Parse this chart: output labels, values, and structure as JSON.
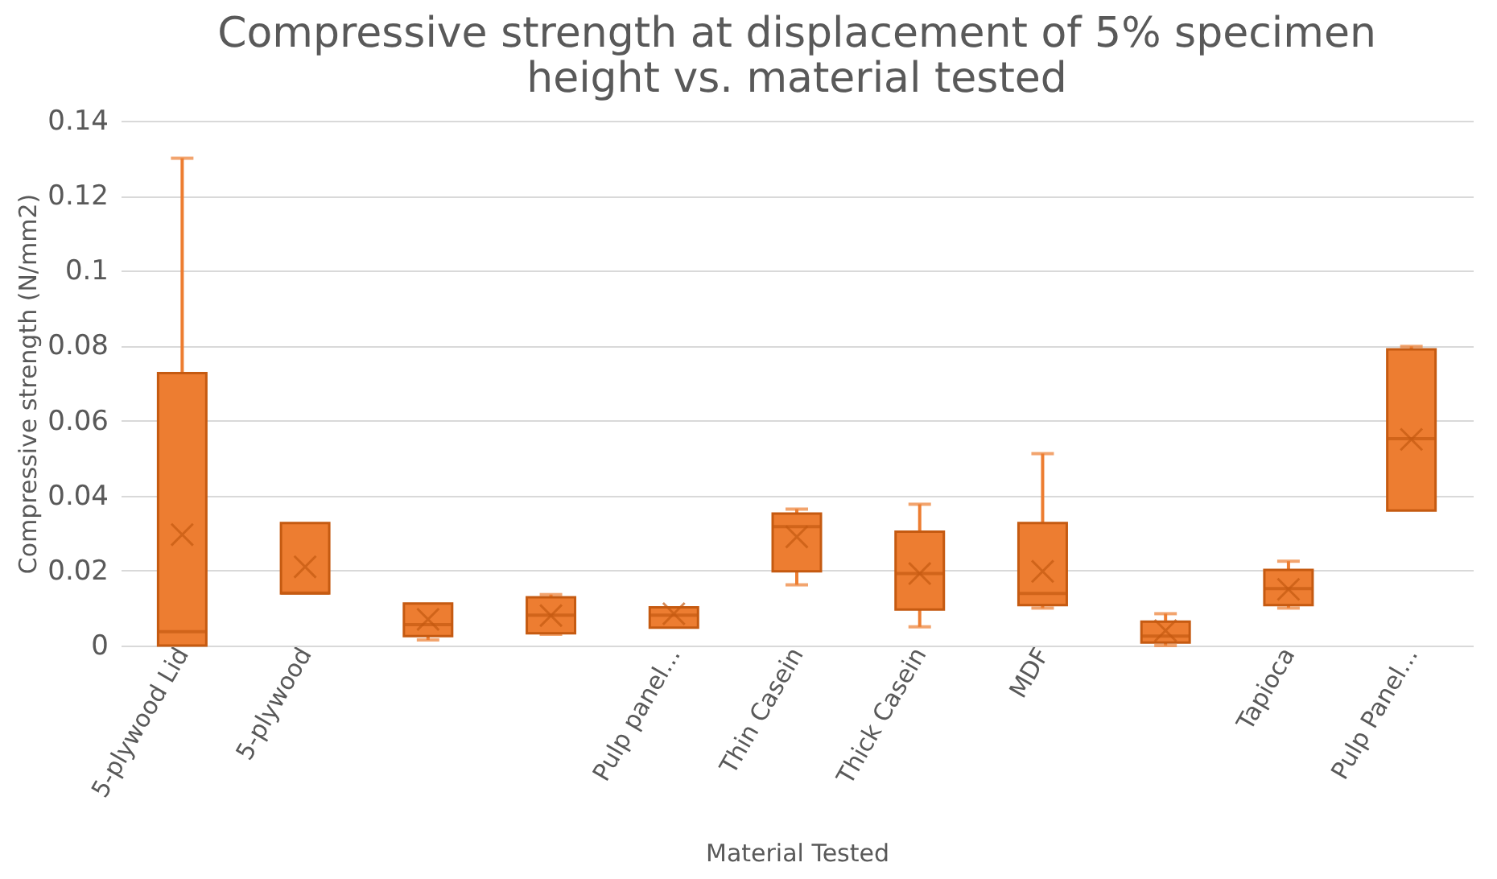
{
  "chart_data": {
    "type": "box",
    "title": "Compressive strength at displacement of 5% specimen height vs. material tested",
    "xlabel": "Material Tested",
    "ylabel": "Compressive strength (N/mm2)",
    "categories": [
      "5-plywood Lid",
      "5-plywood",
      null,
      null,
      "Pulp panel...",
      "Thin Casein",
      "Thick Casein",
      "MDF",
      null,
      "Tapioca",
      "Pulp Panel..."
    ],
    "color": "#ed7d31",
    "boxes": [
      {
        "low": 0,
        "q1": 0,
        "median": 0.0037,
        "q3": 0.0727,
        "high": 0.13,
        "mean": 0.0296
      },
      {
        "low": 0.0139,
        "q1": 0.0139,
        "median": 0.014,
        "q3": 0.0327,
        "high": 0.0327,
        "mean": 0.021
      },
      {
        "low": 0.0015,
        "q1": 0.0025,
        "median": 0.0056,
        "q3": 0.0112,
        "high": 0.0112,
        "mean": 0.007
      },
      {
        "low": 0.003,
        "q1": 0.0033,
        "median": 0.0081,
        "q3": 0.0129,
        "high": 0.0136,
        "mean": 0.008
      },
      {
        "low": 0.0048,
        "q1": 0.0048,
        "median": 0.0081,
        "q3": 0.0102,
        "high": 0.0102,
        "mean": 0.0085
      },
      {
        "low": 0.0162,
        "q1": 0.0198,
        "median": 0.0317,
        "q3": 0.0352,
        "high": 0.0364,
        "mean": 0.029
      },
      {
        "low": 0.005,
        "q1": 0.0096,
        "median": 0.0192,
        "q3": 0.0304,
        "high": 0.0377,
        "mean": 0.0192
      },
      {
        "low": 0.01,
        "q1": 0.0108,
        "median": 0.0139,
        "q3": 0.0327,
        "high": 0.0512,
        "mean": 0.0198
      },
      {
        "low": 0.0,
        "q1": 0.0008,
        "median": 0.0025,
        "q3": 0.0064,
        "high": 0.0085,
        "mean": 0.004
      },
      {
        "low": 0.01,
        "q1": 0.0108,
        "median": 0.0152,
        "q3": 0.0202,
        "high": 0.0225,
        "mean": 0.015
      },
      {
        "low": 0.036,
        "q1": 0.036,
        "median": 0.0552,
        "q3": 0.079,
        "high": 0.0798,
        "mean": 0.055
      }
    ],
    "ylim": [
      0,
      0.14
    ],
    "yticks": [
      0,
      0.02,
      0.04,
      0.06,
      0.08,
      0.1,
      0.12,
      0.14
    ],
    "grid": "y"
  }
}
